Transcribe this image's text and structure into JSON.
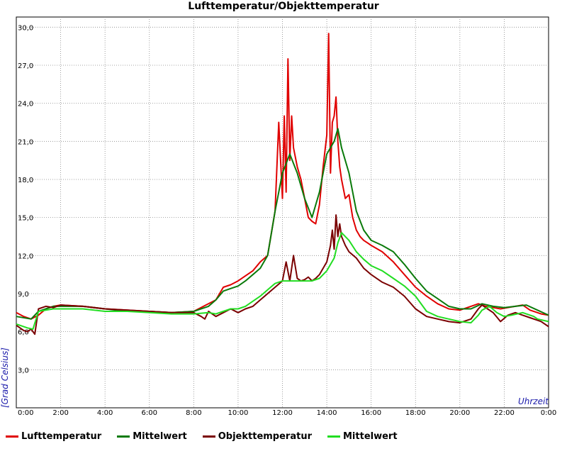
{
  "chart_data": {
    "type": "line",
    "title": "Lufttemperatur/Objekttemperatur",
    "xlabel": "Uhrzeit",
    "ylabel": "[Grad Celsius]",
    "xlim": [
      0,
      1440
    ],
    "ylim": [
      3.0,
      30.0
    ],
    "x_tick_labels": [
      "0:00",
      "2:00",
      "4:00",
      "6:00",
      "8:00",
      "10:00",
      "12:00",
      "14:00",
      "16:00",
      "18:00",
      "20:00",
      "22:00",
      "0:00"
    ],
    "y_tick_labels": [
      "3,0",
      "6,0",
      "9,0",
      "12,0",
      "15,0",
      "18,0",
      "21,0",
      "24,0",
      "27,0",
      "30,0"
    ],
    "grid": true,
    "legend_position": "bottom",
    "series": [
      {
        "name": "Lufttemperatur",
        "color": "#e00000",
        "x": [
          0,
          20,
          40,
          60,
          80,
          100,
          120,
          180,
          240,
          300,
          360,
          420,
          480,
          540,
          560,
          580,
          600,
          620,
          640,
          660,
          680,
          700,
          710,
          720,
          725,
          730,
          735,
          740,
          745,
          750,
          760,
          770,
          780,
          790,
          800,
          810,
          820,
          830,
          840,
          845,
          850,
          855,
          860,
          865,
          870,
          875,
          880,
          890,
          900,
          910,
          920,
          930,
          940,
          950,
          960,
          990,
          1020,
          1050,
          1080,
          1110,
          1140,
          1170,
          1200,
          1230,
          1250,
          1260,
          1270,
          1290,
          1310,
          1330,
          1350,
          1370,
          1390,
          1410,
          1420,
          1440
        ],
        "y": [
          7.5,
          7.2,
          7.0,
          7.3,
          7.8,
          8.0,
          8.1,
          8.0,
          7.8,
          7.7,
          7.6,
          7.5,
          7.6,
          8.5,
          9.5,
          9.7,
          10.0,
          10.4,
          10.8,
          11.5,
          12.0,
          15.5,
          22.5,
          16.5,
          23.0,
          17.0,
          27.5,
          19.5,
          23.0,
          20.5,
          19.0,
          18.0,
          16.5,
          15.0,
          14.7,
          14.5,
          16.0,
          19.0,
          21.5,
          29.5,
          18.5,
          22.5,
          23.0,
          24.5,
          21.0,
          19.0,
          18.0,
          16.5,
          16.8,
          15.0,
          14.0,
          13.5,
          13.2,
          13.0,
          12.8,
          12.3,
          11.5,
          10.5,
          9.5,
          8.8,
          8.2,
          7.8,
          7.7,
          8.0,
          8.2,
          8.1,
          8.0,
          7.9,
          7.8,
          7.9,
          8.0,
          8.1,
          7.7,
          7.5,
          7.4,
          7.3
        ]
      },
      {
        "name": "Mittelwert",
        "color": "#0a7a0a",
        "x": [
          0,
          40,
          60,
          100,
          180,
          240,
          300,
          360,
          420,
          480,
          520,
          540,
          560,
          580,
          600,
          620,
          640,
          660,
          680,
          700,
          720,
          740,
          760,
          780,
          800,
          820,
          840,
          860,
          870,
          880,
          900,
          920,
          940,
          960,
          990,
          1020,
          1050,
          1080,
          1110,
          1140,
          1170,
          1200,
          1230,
          1260,
          1290,
          1320,
          1350,
          1380,
          1410,
          1440
        ],
        "y": [
          7.2,
          7.0,
          7.6,
          8.0,
          8.0,
          7.8,
          7.6,
          7.6,
          7.5,
          7.6,
          8.0,
          8.5,
          9.2,
          9.4,
          9.6,
          10.0,
          10.5,
          11.0,
          12.0,
          15.5,
          18.5,
          20.0,
          18.5,
          16.5,
          15.0,
          17.0,
          20.0,
          21.0,
          22.0,
          20.5,
          18.5,
          15.5,
          14.0,
          13.2,
          12.8,
          12.3,
          11.3,
          10.2,
          9.2,
          8.6,
          8.0,
          7.8,
          7.8,
          8.2,
          8.0,
          7.9,
          8.0,
          8.1,
          7.7,
          7.3
        ]
      },
      {
        "name": "Objekttemperatur",
        "color": "#7a0000",
        "x": [
          0,
          10,
          20,
          30,
          40,
          50,
          60,
          80,
          100,
          120,
          180,
          240,
          300,
          360,
          420,
          480,
          500,
          510,
          520,
          540,
          560,
          580,
          600,
          620,
          640,
          660,
          680,
          700,
          720,
          730,
          740,
          750,
          760,
          770,
          780,
          790,
          800,
          810,
          820,
          830,
          840,
          850,
          855,
          860,
          865,
          870,
          875,
          880,
          890,
          900,
          920,
          940,
          960,
          990,
          1020,
          1050,
          1080,
          1110,
          1140,
          1170,
          1200,
          1230,
          1250,
          1260,
          1275,
          1290,
          1310,
          1330,
          1350,
          1370,
          1390,
          1410,
          1420,
          1440
        ],
        "y": [
          6.5,
          6.3,
          6.1,
          6.0,
          6.2,
          5.8,
          7.8,
          8.0,
          7.9,
          8.1,
          8.0,
          7.8,
          7.7,
          7.6,
          7.5,
          7.5,
          7.2,
          7.0,
          7.6,
          7.2,
          7.5,
          7.8,
          7.5,
          7.8,
          8.0,
          8.5,
          9.0,
          9.5,
          10.0,
          11.5,
          10.0,
          12.0,
          10.2,
          10.0,
          10.1,
          10.3,
          10.0,
          10.2,
          10.5,
          11.0,
          11.5,
          12.8,
          14.0,
          12.5,
          15.2,
          13.5,
          14.5,
          13.5,
          12.8,
          12.3,
          11.8,
          11.0,
          10.5,
          9.9,
          9.5,
          8.8,
          7.8,
          7.2,
          7.0,
          6.8,
          6.7,
          7.0,
          7.8,
          8.1,
          7.8,
          7.5,
          6.8,
          7.3,
          7.5,
          7.3,
          7.1,
          6.9,
          6.8,
          6.4
        ]
      },
      {
        "name": "Mittelwert",
        "color": "#22dd22",
        "x": [
          0,
          30,
          45,
          60,
          80,
          100,
          180,
          240,
          300,
          360,
          420,
          480,
          520,
          540,
          560,
          580,
          600,
          620,
          640,
          660,
          680,
          700,
          720,
          740,
          760,
          780,
          800,
          820,
          840,
          860,
          870,
          880,
          900,
          920,
          940,
          960,
          990,
          1020,
          1050,
          1080,
          1110,
          1140,
          1170,
          1200,
          1230,
          1250,
          1260,
          1280,
          1300,
          1320,
          1340,
          1370,
          1400,
          1410,
          1440
        ],
        "y": [
          6.6,
          6.3,
          6.2,
          7.6,
          7.7,
          7.8,
          7.8,
          7.6,
          7.6,
          7.5,
          7.4,
          7.4,
          7.5,
          7.4,
          7.6,
          7.8,
          7.8,
          8.0,
          8.4,
          8.8,
          9.3,
          9.8,
          10.0,
          10.0,
          10.0,
          10.0,
          10.0,
          10.2,
          10.8,
          11.8,
          13.0,
          13.8,
          13.2,
          12.3,
          11.7,
          11.2,
          10.8,
          10.2,
          9.6,
          8.8,
          7.6,
          7.2,
          7.0,
          6.8,
          6.7,
          7.3,
          7.7,
          8.0,
          7.5,
          7.2,
          7.3,
          7.5,
          7.2,
          7.0,
          6.8
        ]
      }
    ]
  }
}
